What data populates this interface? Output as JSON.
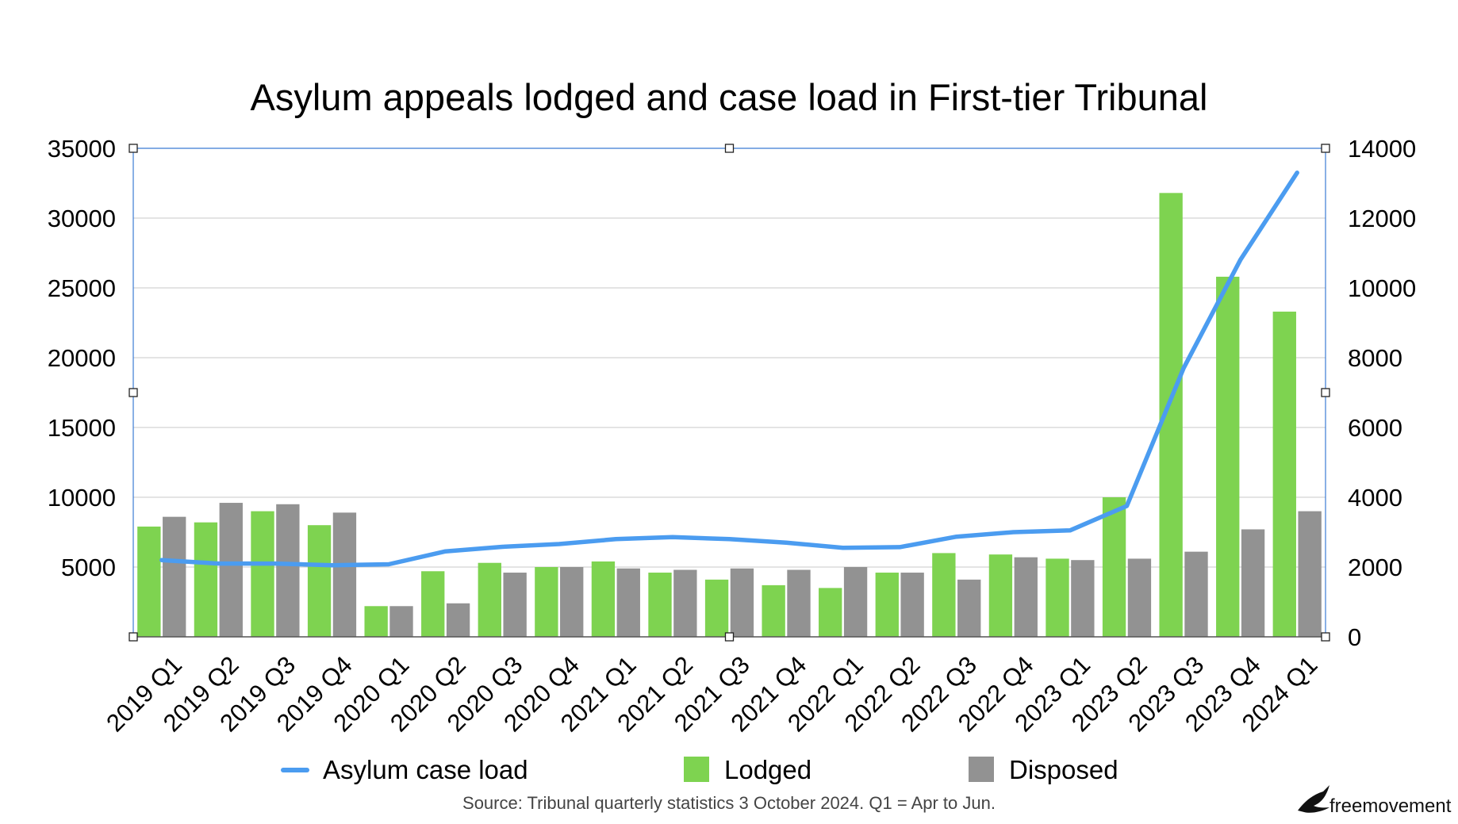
{
  "chart_data": {
    "type": "bar",
    "title": "Asylum appeals lodged and case load in First-tier Tribunal",
    "categories": [
      "2019 Q1",
      "2019 Q2",
      "2019 Q3",
      "2019 Q4",
      "2020 Q1",
      "2020 Q2",
      "2020 Q3",
      "2020 Q4",
      "2021 Q1",
      "2021 Q2",
      "2021 Q3",
      "2021 Q4",
      "2022 Q1",
      "2022 Q2",
      "2022 Q3",
      "2022 Q4",
      "2023 Q1",
      "2023 Q2",
      "2023 Q3",
      "2023 Q4",
      "2024 Q1"
    ],
    "series": [
      {
        "name": "Lodged",
        "type": "bar",
        "axis": "left",
        "color": "#7ed350",
        "values": [
          7900,
          8200,
          9000,
          8000,
          2200,
          4700,
          5300,
          5000,
          5400,
          4600,
          4100,
          3700,
          3500,
          4600,
          6000,
          5900,
          5600,
          10000,
          31800,
          25800,
          23300
        ]
      },
      {
        "name": "Disposed",
        "type": "bar",
        "axis": "left",
        "color": "#929292",
        "values": [
          8600,
          9600,
          9500,
          8900,
          2200,
          2400,
          4600,
          5000,
          4900,
          4800,
          4900,
          4800,
          5000,
          4600,
          4100,
          5700,
          5500,
          5600,
          6100,
          7700,
          9000
        ]
      },
      {
        "name": "Asylum case load",
        "type": "line",
        "axis": "right",
        "color": "#4b9cf0",
        "values": [
          2200,
          2100,
          2100,
          2050,
          2080,
          2450,
          2580,
          2660,
          2800,
          2860,
          2800,
          2700,
          2550,
          2570,
          2870,
          3000,
          3050,
          3750,
          7700,
          10800,
          13300
        ]
      }
    ],
    "y_left": {
      "min": 0,
      "max": 35000,
      "ticks": [
        "35000",
        "30000",
        "25000",
        "20000",
        "15000",
        "10000",
        "5000"
      ]
    },
    "y_right": {
      "min": 0,
      "max": 14000,
      "ticks": [
        "14000",
        "12000",
        "10000",
        "8000",
        "6000",
        "4000",
        "2000",
        "0"
      ]
    },
    "grid": true,
    "legend": {
      "position": "bottom",
      "items": [
        "Asylum case load",
        "Lodged",
        "Disposed"
      ]
    },
    "source": "Source: Tribunal quarterly statistics 3 October 2024. Q1 = Apr to Jun."
  },
  "branding": {
    "logo_text": "freemovement",
    "logo_icon": "bird-icon"
  }
}
